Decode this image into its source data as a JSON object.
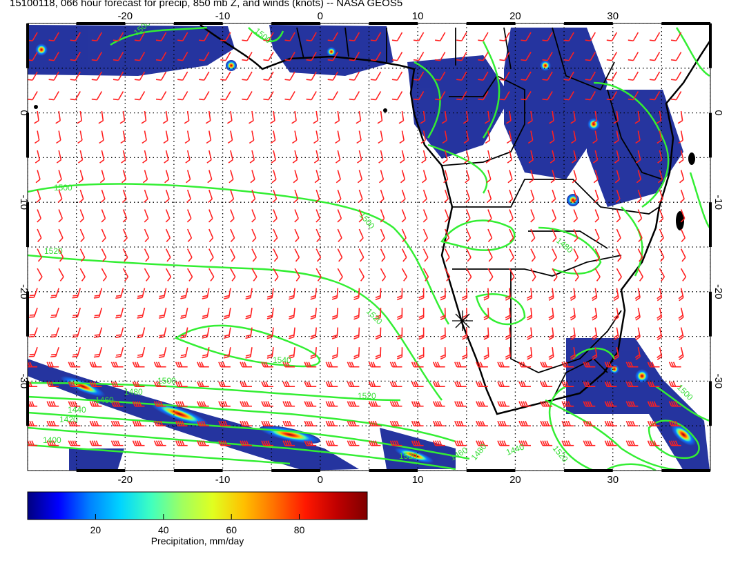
{
  "title": "15100118, 066 hour forecast for precip, 850 mb Z, and winds (knots) -- NASA GEOS5",
  "map": {
    "lon_range": [
      -30,
      40
    ],
    "lat_range": [
      -40,
      10
    ],
    "lon_ticks": [
      -20,
      -10,
      0,
      10,
      20,
      30
    ],
    "lat_ticks": [
      0,
      -10,
      -20,
      -30
    ],
    "grid": true,
    "colors": {
      "wind_barbs": "#ff2020",
      "height_contours": "#33ee33",
      "coastlines": "#000000",
      "precip_low": "#1a2a9a",
      "precip_high": "#800000"
    }
  },
  "contours": [
    {
      "value": "1500",
      "label": "1500"
    },
    {
      "value": "1500",
      "label": "1500"
    },
    {
      "value": "1500",
      "label": "1500"
    },
    {
      "value": "1500",
      "label": "1500"
    },
    {
      "value": "1520",
      "label": "1520"
    },
    {
      "value": "1520",
      "label": "1520"
    },
    {
      "value": "1520",
      "label": "1520"
    },
    {
      "value": "1520",
      "label": "1520"
    },
    {
      "value": "1540",
      "label": "1540"
    },
    {
      "value": "1500",
      "label": "1500"
    },
    {
      "value": "1480",
      "label": "1480"
    },
    {
      "value": "1460",
      "label": "1460"
    },
    {
      "value": "1440",
      "label": "1440"
    },
    {
      "value": "1420",
      "label": "1420"
    },
    {
      "value": "1400",
      "label": "1400"
    },
    {
      "value": "1500",
      "label": "1500"
    },
    {
      "value": "1480",
      "label": "1480"
    },
    {
      "value": "1520",
      "label": "1520"
    },
    {
      "value": "1460",
      "label": "1460"
    },
    {
      "value": "1440",
      "label": "1440"
    },
    {
      "value": "1480",
      "label": "1480"
    }
  ],
  "colorbar": {
    "ticks": [
      "20",
      "40",
      "60",
      "80"
    ],
    "tick_values": [
      20,
      40,
      60,
      80
    ],
    "range": [
      0,
      100
    ],
    "label": "Precipitation, mm/day",
    "colors": [
      "#00007f",
      "#0000ff",
      "#0080ff",
      "#00d4ff",
      "#40ffbf",
      "#a0ff60",
      "#e0ff20",
      "#ffc000",
      "#ff7000",
      "#ff1800",
      "#c00000",
      "#7f0000"
    ]
  }
}
